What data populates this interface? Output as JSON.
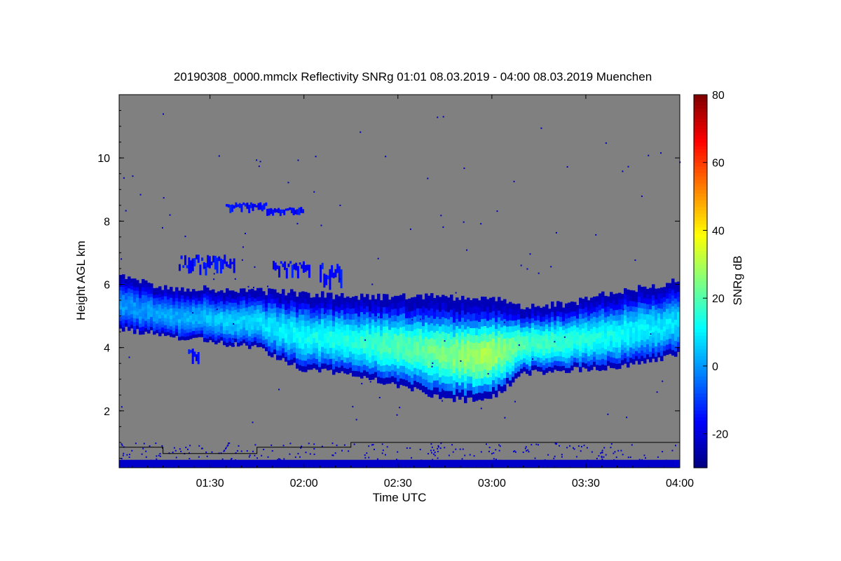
{
  "chart_data": {
    "type": "heatmap",
    "title": "20190308_0000.mmclx Reflectivity SNRg   01:01 08.03.2019 - 04:00 08.03.2019 Muenchen",
    "xlabel": "Time UTC",
    "ylabel": "Height AGL km",
    "colorbar_label": "SNRg dB",
    "x_range_minutes_utc": [
      61,
      240
    ],
    "x_ticks": [
      {
        "minute": 90,
        "label": "01:30"
      },
      {
        "minute": 120,
        "label": "02:00"
      },
      {
        "minute": 150,
        "label": "02:30"
      },
      {
        "minute": 180,
        "label": "03:00"
      },
      {
        "minute": 210,
        "label": "03:30"
      },
      {
        "minute": 240,
        "label": "04:00"
      }
    ],
    "y_range_km": [
      0.2,
      12.0
    ],
    "y_ticks": [
      2,
      4,
      6,
      8,
      10
    ],
    "color_range_db": [
      -30,
      80
    ],
    "color_ticks": [
      -20,
      0,
      20,
      40,
      60,
      80
    ],
    "background_color": "#808080",
    "cloud_layer": {
      "description_points": [
        {
          "minute": 61,
          "top_km": 6.3,
          "base_km": 4.6,
          "core_db": 0
        },
        {
          "minute": 75,
          "top_km": 5.9,
          "base_km": 4.4,
          "core_db": 2
        },
        {
          "minute": 90,
          "top_km": 5.85,
          "base_km": 4.2,
          "core_db": 5
        },
        {
          "minute": 105,
          "top_km": 5.8,
          "base_km": 4.0,
          "core_db": 8
        },
        {
          "minute": 120,
          "top_km": 5.7,
          "base_km": 3.3,
          "core_db": 12
        },
        {
          "minute": 135,
          "top_km": 5.6,
          "base_km": 3.2,
          "core_db": 15
        },
        {
          "minute": 150,
          "top_km": 5.6,
          "base_km": 2.8,
          "core_db": 20
        },
        {
          "minute": 165,
          "top_km": 5.6,
          "base_km": 2.4,
          "core_db": 24
        },
        {
          "minute": 178,
          "top_km": 5.6,
          "base_km": 2.3,
          "core_db": 30
        },
        {
          "minute": 190,
          "top_km": 5.3,
          "base_km": 3.2,
          "core_db": 20
        },
        {
          "minute": 205,
          "top_km": 5.4,
          "base_km": 3.3,
          "core_db": 16
        },
        {
          "minute": 220,
          "top_km": 5.8,
          "base_km": 3.4,
          "core_db": 12
        },
        {
          "minute": 240,
          "top_km": 6.1,
          "base_km": 3.8,
          "core_db": 8
        }
      ]
    },
    "boundary_line_km": [
      {
        "minute": 61,
        "km": 0.85
      },
      {
        "minute": 75,
        "km": 0.65
      },
      {
        "minute": 105,
        "km": 0.85
      },
      {
        "minute": 135,
        "km": 1.0
      },
      {
        "minute": 240,
        "km": 1.0
      }
    ]
  }
}
